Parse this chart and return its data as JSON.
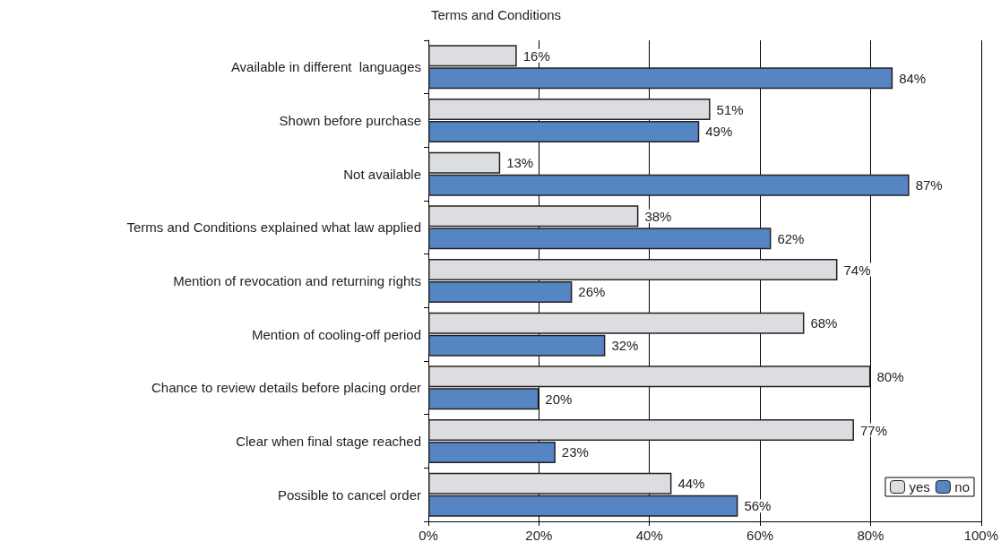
{
  "chart_data": {
    "type": "bar",
    "orientation": "horizontal",
    "title": "Terms and Conditions",
    "categories": [
      "Available in different  languages",
      "Shown before purchase",
      "Not available",
      "Terms and Conditions explained what law applied",
      "Mention of revocation and returning rights",
      "Mention of cooling-off period",
      "Chance to review details before placing order",
      "Clear when final stage reached",
      "Possible to cancel order"
    ],
    "series": [
      {
        "name": "yes",
        "color": "#dcdde0",
        "values": [
          16,
          51,
          13,
          38,
          74,
          68,
          80,
          77,
          44
        ],
        "value_labels": [
          "16%",
          "51%",
          "13%",
          "38%",
          "74%",
          "68%",
          "80%",
          "77%",
          "44%"
        ]
      },
      {
        "name": "no",
        "color": "#5685c4",
        "values": [
          84,
          49,
          87,
          62,
          26,
          32,
          20,
          23,
          56
        ],
        "value_labels": [
          "84%",
          "49%",
          "87%",
          "62%",
          "26%",
          "32%",
          "20%",
          "23%",
          "56%"
        ]
      }
    ],
    "xlim": [
      0,
      100
    ],
    "xticks": [
      {
        "value": 0,
        "label": "0%"
      },
      {
        "value": 20,
        "label": "20%"
      },
      {
        "value": 40,
        "label": "40%"
      },
      {
        "value": 60,
        "label": "60%"
      },
      {
        "value": 80,
        "label": "80%"
      },
      {
        "value": 100,
        "label": "100%"
      }
    ],
    "grid": "x",
    "legend": "bottom right"
  }
}
